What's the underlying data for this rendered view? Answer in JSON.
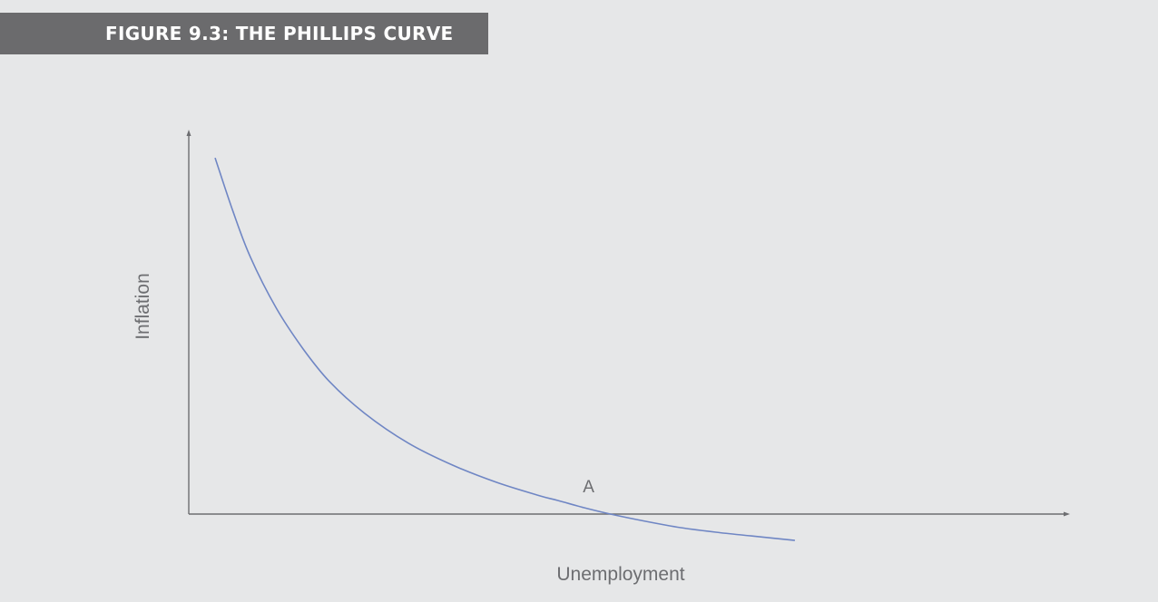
{
  "figure": {
    "title": "FIGURE 9.3: THE PHILLIPS CURVE"
  },
  "chart_data": {
    "type": "line",
    "title": "FIGURE 9.3: THE PHILLIPS CURVE",
    "xlabel": "Unemployment",
    "ylabel": "Inflation",
    "grid": false,
    "tick_labels": false,
    "curve_color": "#6f86c4",
    "axis_color": "#6d6e71",
    "series": [
      {
        "name": "",
        "points": [
          [
            3,
            39.2
          ],
          [
            5,
            33.4
          ],
          [
            7,
            28.3
          ],
          [
            10,
            22.6
          ],
          [
            13,
            18.2
          ],
          [
            16,
            14.6
          ],
          [
            20,
            11.1
          ],
          [
            25,
            7.8
          ],
          [
            30,
            5.4
          ],
          [
            35,
            3.5
          ],
          [
            40,
            2.0
          ],
          [
            42,
            1.5
          ],
          [
            45,
            0.7
          ],
          [
            48,
            0.0
          ],
          [
            52,
            -0.8
          ],
          [
            56,
            -1.5
          ],
          [
            60,
            -2.0
          ],
          [
            64,
            -2.4
          ],
          [
            69,
            -2.9
          ]
        ]
      }
    ],
    "annotations": [
      {
        "label": "A",
        "x": 48,
        "y": 0
      }
    ],
    "xlim": [
      0,
      100
    ],
    "ylim": [
      -4,
      42
    ]
  }
}
